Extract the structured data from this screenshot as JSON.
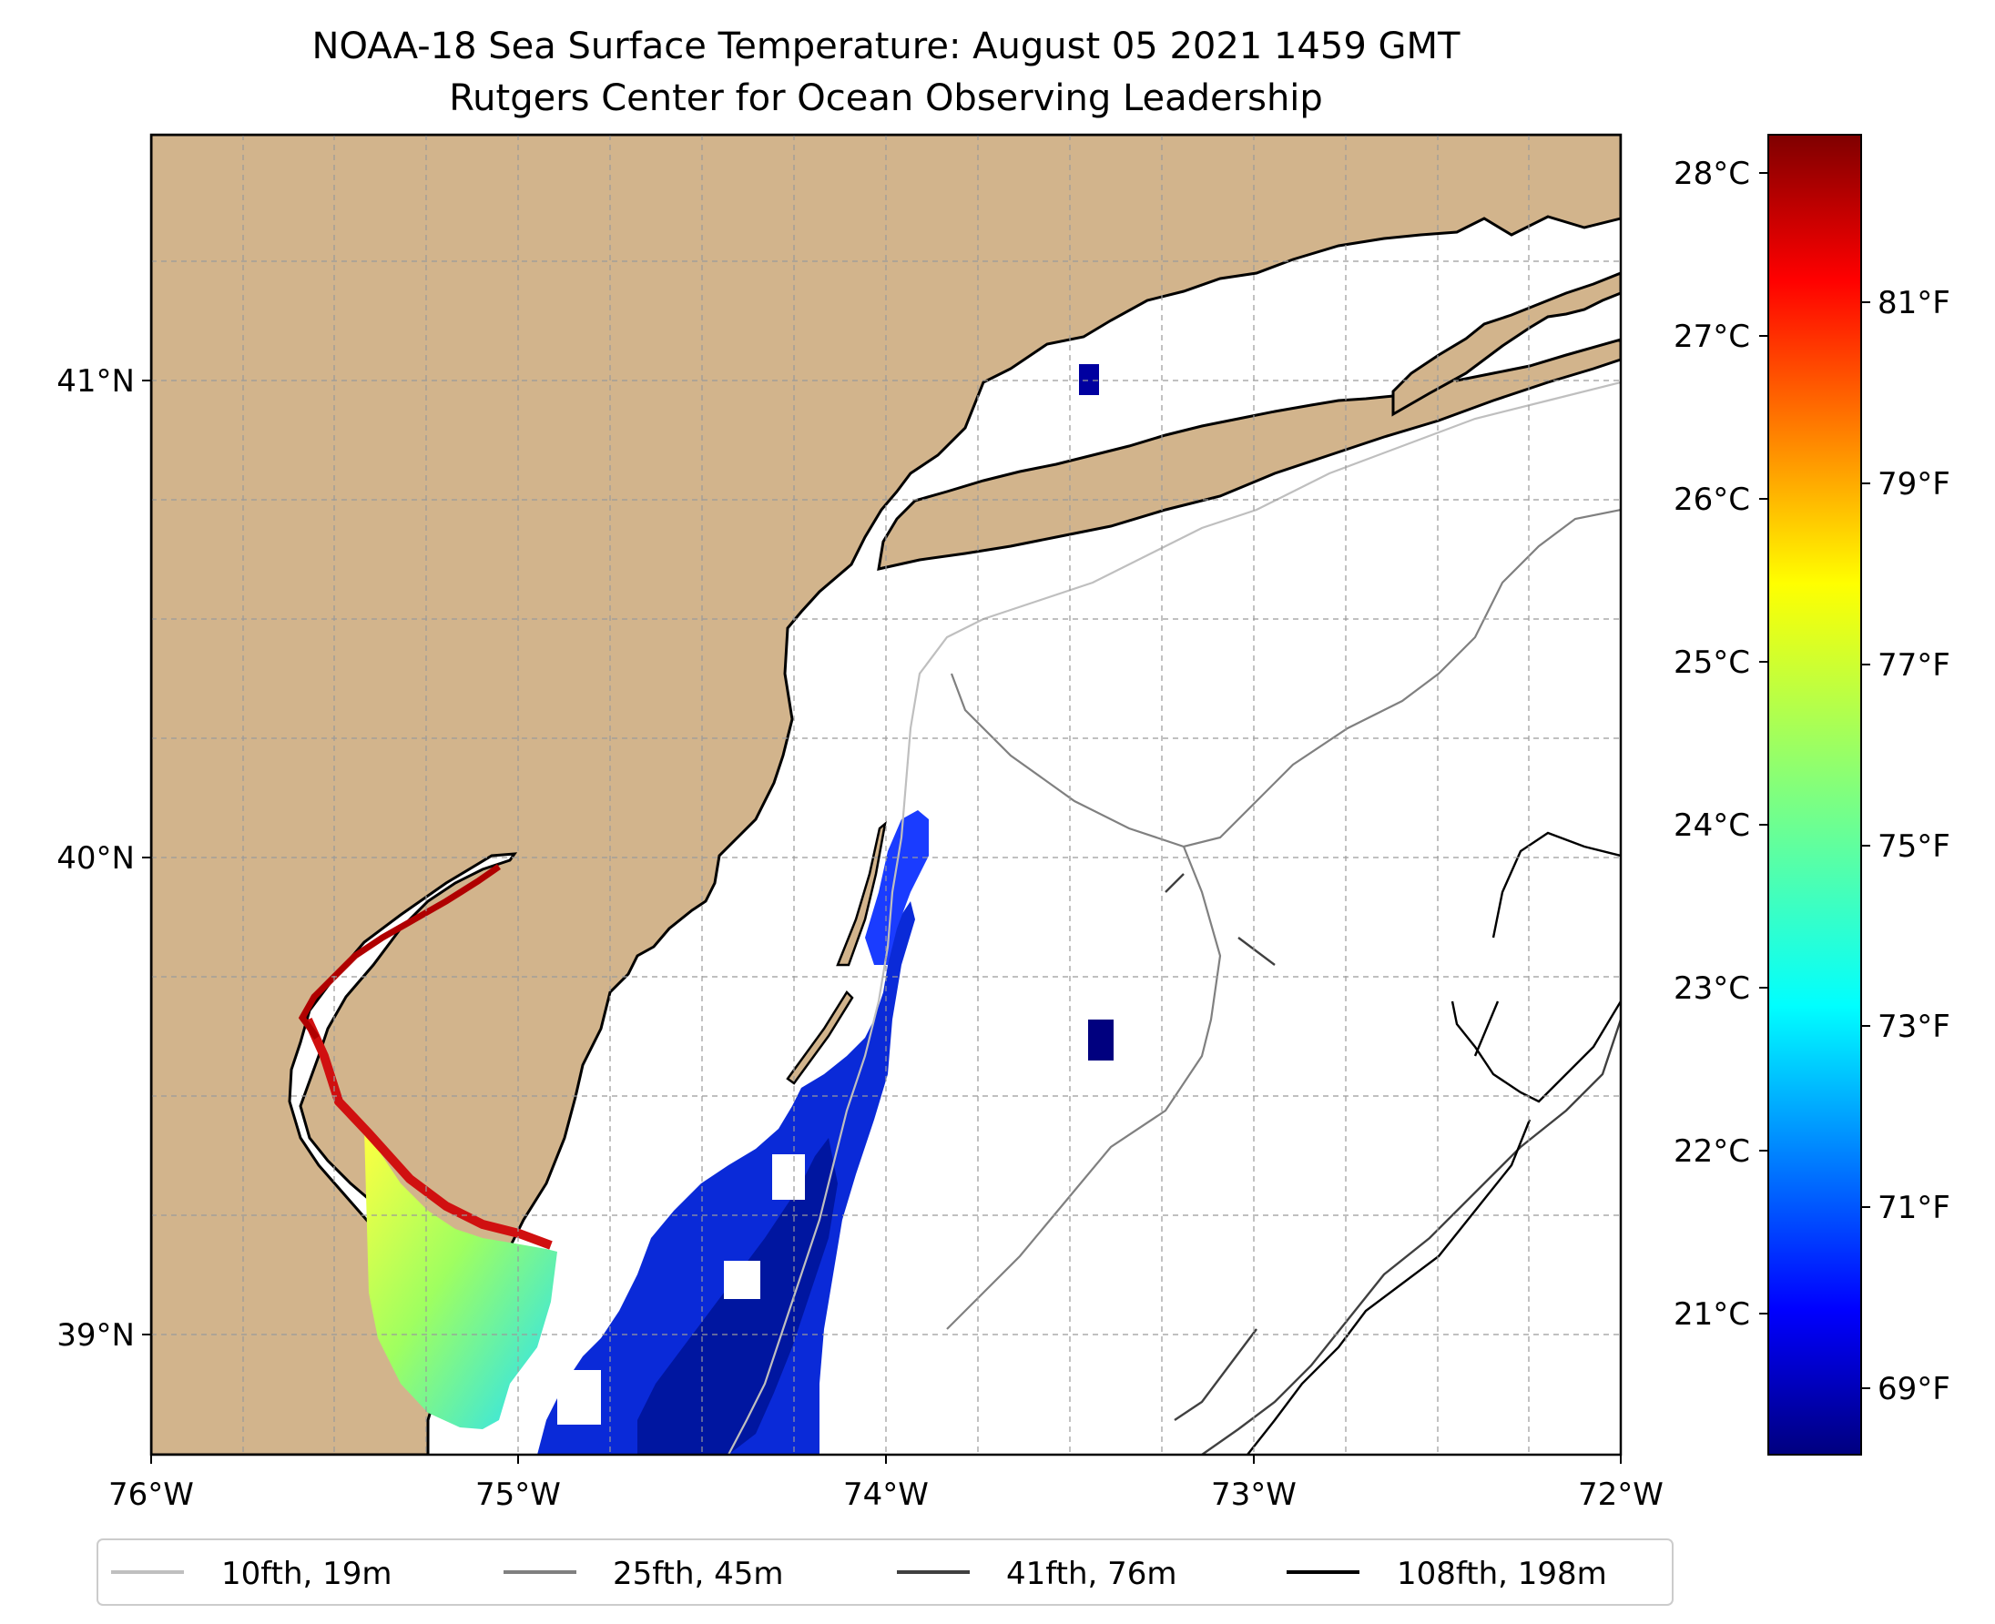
{
  "title": {
    "line1": "NOAA-18 Sea Surface Temperature: August 05 2021 1459 GMT",
    "line2": "Rutgers Center for Ocean Observing Leadership"
  },
  "map": {
    "lon_ticks": [
      "76°W",
      "75°W",
      "74°W",
      "73°W",
      "72°W"
    ],
    "lat_ticks": [
      "41°N",
      "40°N",
      "39°N"
    ],
    "extent": {
      "lon": [
        -76,
        -72
      ],
      "lat": [
        38.73,
        41.52
      ]
    },
    "colors": {
      "land": "#d2b48c",
      "ocean": "#ffffff",
      "grid": "#9a9a9a"
    }
  },
  "colorbar": {
    "celsius_ticks": [
      "28°C",
      "27°C",
      "26°C",
      "25°C",
      "24°C",
      "23°C",
      "22°C",
      "21°C"
    ],
    "fahrenheit_ticks": [
      "81°F",
      "79°F",
      "77°F",
      "75°F",
      "73°F",
      "71°F",
      "69°F"
    ],
    "celsius_range": [
      20.2,
      28.3
    ],
    "colormap": "jet"
  },
  "legend": {
    "items": [
      {
        "label": "10fth, 19m",
        "color": "#bfbfbf"
      },
      {
        "label": "25fth, 45m",
        "color": "#808080"
      },
      {
        "label": "41fth, 76m",
        "color": "#404040"
      },
      {
        "label": "108fth, 198m",
        "color": "#000000"
      }
    ]
  }
}
